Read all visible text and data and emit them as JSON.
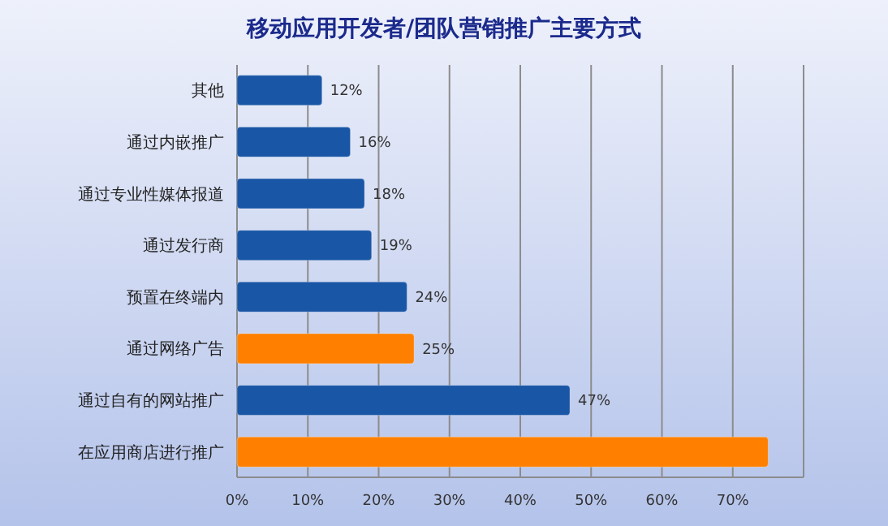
{
  "chart_data": {
    "type": "bar",
    "orientation": "horizontal",
    "title": "移动应用开发者/团队营销推广主要方式",
    "categories": [
      "其他",
      "通过内嵌推广",
      "通过专业性媒体报道",
      "通过发行商",
      "预置在终端内",
      "通过网络广告",
      "通过自有的网站推广",
      "在应用商店进行推广"
    ],
    "values": [
      12,
      16,
      18,
      19,
      24,
      25,
      47,
      75
    ],
    "colors": [
      "#1a56a6",
      "#1a56a6",
      "#1a56a6",
      "#1a56a6",
      "#1a56a6",
      "#ff8000",
      "#1a56a6",
      "#ff8000"
    ],
    "value_labels": [
      "12%",
      "16%",
      "18%",
      "19%",
      "24%",
      "25%",
      "47%",
      null
    ],
    "xlim": [
      0,
      80
    ],
    "xticks": [
      {
        "value": 0,
        "label": "0%"
      },
      {
        "value": 10,
        "label": "10%"
      },
      {
        "value": 20,
        "label": "20%"
      },
      {
        "value": 30,
        "label": "30%"
      },
      {
        "value": 40,
        "label": "40%"
      },
      {
        "value": 50,
        "label": "50%"
      },
      {
        "value": 60,
        "label": "60%"
      },
      {
        "value": 70,
        "label": "70%"
      },
      {
        "value": 80,
        "label": null
      }
    ],
    "grid": "x"
  }
}
